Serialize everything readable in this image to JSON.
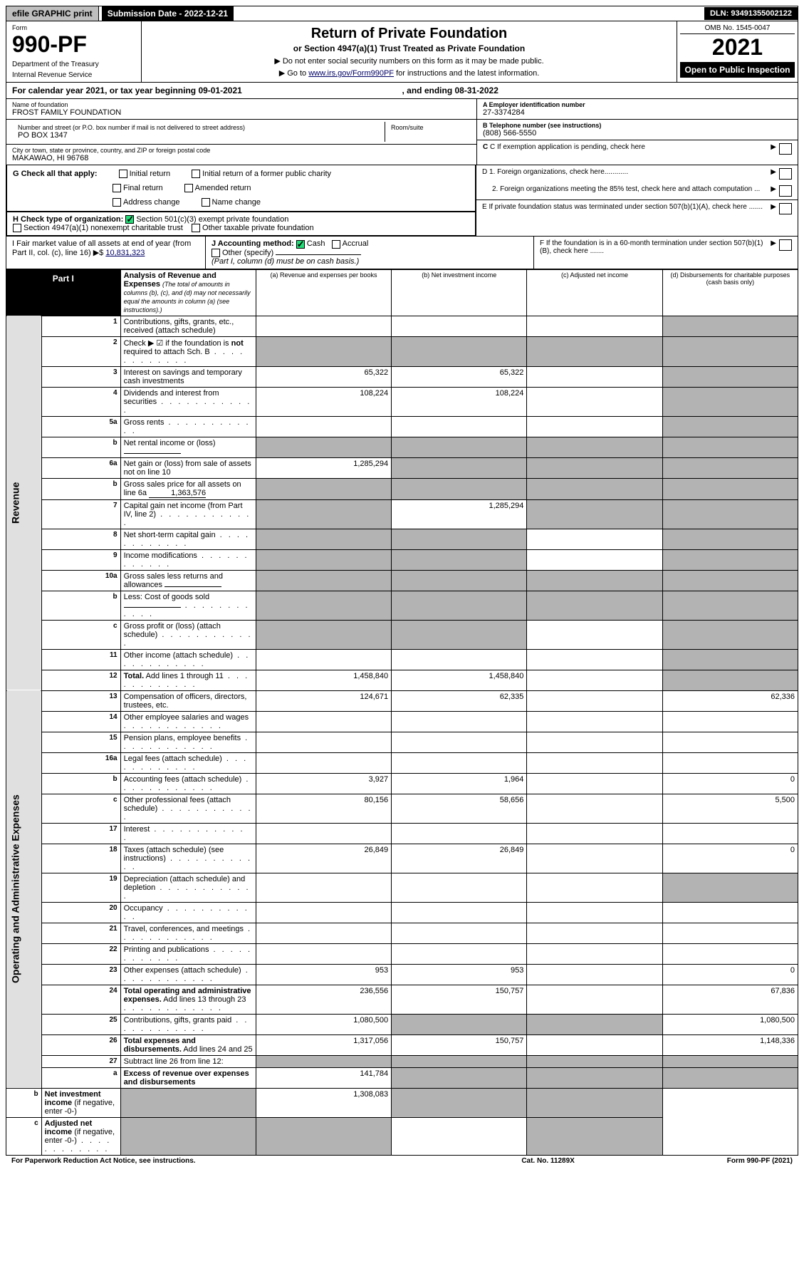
{
  "topbar": {
    "efile": "efile GRAPHIC print",
    "submission": "Submission Date - 2022-12-21",
    "dln": "DLN: 93491355002122"
  },
  "header": {
    "form_label": "Form",
    "form_number": "990-PF",
    "dept": "Department of the Treasury",
    "irs": "Internal Revenue Service",
    "title": "Return of Private Foundation",
    "subtitle": "or Section 4947(a)(1) Trust Treated as Private Foundation",
    "note1": "▶ Do not enter social security numbers on this form as it may be made public.",
    "note2_pre": "▶ Go to ",
    "note2_link": "www.irs.gov/Form990PF",
    "note2_post": " for instructions and the latest information.",
    "omb": "OMB No. 1545-0047",
    "year": "2021",
    "open": "Open to Public Inspection"
  },
  "calendar": {
    "beg": "For calendar year 2021, or tax year beginning 09-01-2021",
    "end": ", and ending 08-31-2022"
  },
  "info": {
    "name_label": "Name of foundation",
    "name": "FROST FAMILY FOUNDATION",
    "addr_label": "Number and street (or P.O. box number if mail is not delivered to street address)",
    "addr": "PO BOX 1347",
    "room_label": "Room/suite",
    "city_label": "City or town, state or province, country, and ZIP or foreign postal code",
    "city": "MAKAWAO, HI  96768",
    "a_label": "A Employer identification number",
    "a_val": "27-3374284",
    "b_label": "B Telephone number (see instructions)",
    "b_val": "(808) 566-5550",
    "c_label": "C If exemption application is pending, check here",
    "d1": "D 1. Foreign organizations, check here............",
    "d2": "2. Foreign organizations meeting the 85% test, check here and attach computation ...",
    "e": "E  If private foundation status was terminated under section 507(b)(1)(A), check here .......",
    "f": "F  If the foundation is in a 60-month termination under section 507(b)(1)(B), check here ......."
  },
  "g": {
    "label": "G Check all that apply:",
    "opts": [
      "Initial return",
      "Final return",
      "Address change",
      "Initial return of a former public charity",
      "Amended return",
      "Name change"
    ]
  },
  "h": {
    "label": "H Check type of organization:",
    "opt1": "Section 501(c)(3) exempt private foundation",
    "opt2": "Section 4947(a)(1) nonexempt charitable trust",
    "opt3": "Other taxable private foundation"
  },
  "i": {
    "label": "I Fair market value of all assets at end of year (from Part II, col. (c), line 16) ▶$ ",
    "val": "10,831,323"
  },
  "j": {
    "label": "J Accounting method:",
    "cash": "Cash",
    "accrual": "Accrual",
    "other": "Other (specify)",
    "note": "(Part I, column (d) must be on cash basis.)"
  },
  "part1": {
    "label": "Part I",
    "title": "Analysis of Revenue and Expenses",
    "title_note": "(The total of amounts in columns (b), (c), and (d) may not necessarily equal the amounts in column (a) (see instructions).)",
    "col_a": "(a)  Revenue and expenses per books",
    "col_b": "(b)  Net investment income",
    "col_c": "(c)  Adjusted net income",
    "col_d": "(d)  Disbursements for charitable purposes (cash basis only)"
  },
  "sides": {
    "revenue": "Revenue",
    "expenses": "Operating and Administrative Expenses"
  },
  "rows": [
    {
      "n": "1",
      "desc": "Contributions, gifts, grants, etc., received (attach schedule)",
      "a": "",
      "b": "",
      "c": "",
      "d": "s"
    },
    {
      "n": "2",
      "desc": "Check ▶ ☑ if the foundation is <b>not</b> required to attach Sch. B",
      "dots": true,
      "a": "s",
      "b": "s",
      "c": "s",
      "d": "s"
    },
    {
      "n": "3",
      "desc": "Interest on savings and temporary cash investments",
      "a": "65,322",
      "b": "65,322",
      "c": "",
      "d": "s"
    },
    {
      "n": "4",
      "desc": "Dividends and interest from securities",
      "dots": true,
      "a": "108,224",
      "b": "108,224",
      "c": "",
      "d": "s"
    },
    {
      "n": "5a",
      "desc": "Gross rents",
      "dots": true,
      "a": "",
      "b": "",
      "c": "",
      "d": "s"
    },
    {
      "n": "b",
      "desc": "Net rental income or (loss)",
      "inline": "",
      "a": "s",
      "b": "s",
      "c": "s",
      "d": "s"
    },
    {
      "n": "6a",
      "desc": "Net gain or (loss) from sale of assets not on line 10",
      "a": "1,285,294",
      "b": "s",
      "c": "s",
      "d": "s"
    },
    {
      "n": "b",
      "desc": "Gross sales price for all assets on line 6a",
      "inline": "1,363,576",
      "a": "s",
      "b": "s",
      "c": "s",
      "d": "s"
    },
    {
      "n": "7",
      "desc": "Capital gain net income (from Part IV, line 2)",
      "dots": true,
      "a": "s",
      "b": "1,285,294",
      "c": "s",
      "d": "s"
    },
    {
      "n": "8",
      "desc": "Net short-term capital gain",
      "dots": true,
      "a": "s",
      "b": "s",
      "c": "",
      "d": "s"
    },
    {
      "n": "9",
      "desc": "Income modifications",
      "dots": true,
      "a": "s",
      "b": "s",
      "c": "",
      "d": "s"
    },
    {
      "n": "10a",
      "desc": "Gross sales less returns and allowances",
      "inline": "",
      "a": "s",
      "b": "s",
      "c": "s",
      "d": "s"
    },
    {
      "n": "b",
      "desc": "Less: Cost of goods sold",
      "dots": true,
      "inline": "",
      "a": "s",
      "b": "s",
      "c": "s",
      "d": "s"
    },
    {
      "n": "c",
      "desc": "Gross profit or (loss) (attach schedule)",
      "dots": true,
      "a": "s",
      "b": "s",
      "c": "",
      "d": "s"
    },
    {
      "n": "11",
      "desc": "Other income (attach schedule)",
      "dots": true,
      "a": "",
      "b": "",
      "c": "",
      "d": "s"
    },
    {
      "n": "12",
      "desc": "<b>Total.</b> Add lines 1 through 11",
      "dots": true,
      "a": "1,458,840",
      "b": "1,458,840",
      "c": "",
      "d": "s"
    },
    {
      "n": "13",
      "desc": "Compensation of officers, directors, trustees, etc.",
      "a": "124,671",
      "b": "62,335",
      "c": "",
      "d": "62,336"
    },
    {
      "n": "14",
      "desc": "Other employee salaries and wages",
      "dots": true,
      "a": "",
      "b": "",
      "c": "",
      "d": ""
    },
    {
      "n": "15",
      "desc": "Pension plans, employee benefits",
      "dots": true,
      "a": "",
      "b": "",
      "c": "",
      "d": ""
    },
    {
      "n": "16a",
      "desc": "Legal fees (attach schedule)",
      "dots": true,
      "a": "",
      "b": "",
      "c": "",
      "d": ""
    },
    {
      "n": "b",
      "desc": "Accounting fees (attach schedule)",
      "dots": true,
      "a": "3,927",
      "b": "1,964",
      "c": "",
      "d": "0"
    },
    {
      "n": "c",
      "desc": "Other professional fees (attach schedule)",
      "dots": true,
      "a": "80,156",
      "b": "58,656",
      "c": "",
      "d": "5,500"
    },
    {
      "n": "17",
      "desc": "Interest",
      "dots": true,
      "a": "",
      "b": "",
      "c": "",
      "d": ""
    },
    {
      "n": "18",
      "desc": "Taxes (attach schedule) (see instructions)",
      "dots": true,
      "a": "26,849",
      "b": "26,849",
      "c": "",
      "d": "0"
    },
    {
      "n": "19",
      "desc": "Depreciation (attach schedule) and depletion",
      "dots": true,
      "a": "",
      "b": "",
      "c": "",
      "d": "s"
    },
    {
      "n": "20",
      "desc": "Occupancy",
      "dots": true,
      "a": "",
      "b": "",
      "c": "",
      "d": ""
    },
    {
      "n": "21",
      "desc": "Travel, conferences, and meetings",
      "dots": true,
      "a": "",
      "b": "",
      "c": "",
      "d": ""
    },
    {
      "n": "22",
      "desc": "Printing and publications",
      "dots": true,
      "a": "",
      "b": "",
      "c": "",
      "d": ""
    },
    {
      "n": "23",
      "desc": "Other expenses (attach schedule)",
      "dots": true,
      "a": "953",
      "b": "953",
      "c": "",
      "d": "0"
    },
    {
      "n": "24",
      "desc": "<b>Total operating and administrative expenses.</b> Add lines 13 through 23",
      "dots": true,
      "a": "236,556",
      "b": "150,757",
      "c": "",
      "d": "67,836"
    },
    {
      "n": "25",
      "desc": "Contributions, gifts, grants paid",
      "dots": true,
      "a": "1,080,500",
      "b": "s",
      "c": "s",
      "d": "1,080,500"
    },
    {
      "n": "26",
      "desc": "<b>Total expenses and disbursements.</b> Add lines 24 and 25",
      "a": "1,317,056",
      "b": "150,757",
      "c": "",
      "d": "1,148,336"
    },
    {
      "n": "27",
      "desc": "Subtract line 26 from line 12:",
      "a": "s",
      "b": "s",
      "c": "s",
      "d": "s"
    },
    {
      "n": "a",
      "desc": "<b>Excess of revenue over expenses and disbursements</b>",
      "a": "141,784",
      "b": "s",
      "c": "s",
      "d": "s"
    },
    {
      "n": "b",
      "desc": "<b>Net investment income</b> (if negative, enter -0-)",
      "a": "s",
      "b": "1,308,083",
      "c": "s",
      "d": "s"
    },
    {
      "n": "c",
      "desc": "<b>Adjusted net income</b> (if negative, enter -0-)",
      "dots": true,
      "a": "s",
      "b": "s",
      "c": "",
      "d": "s"
    }
  ],
  "footer": {
    "l": "For Paperwork Reduction Act Notice, see instructions.",
    "c": "Cat. No. 11289X",
    "r": "Form 990-PF (2021)"
  }
}
